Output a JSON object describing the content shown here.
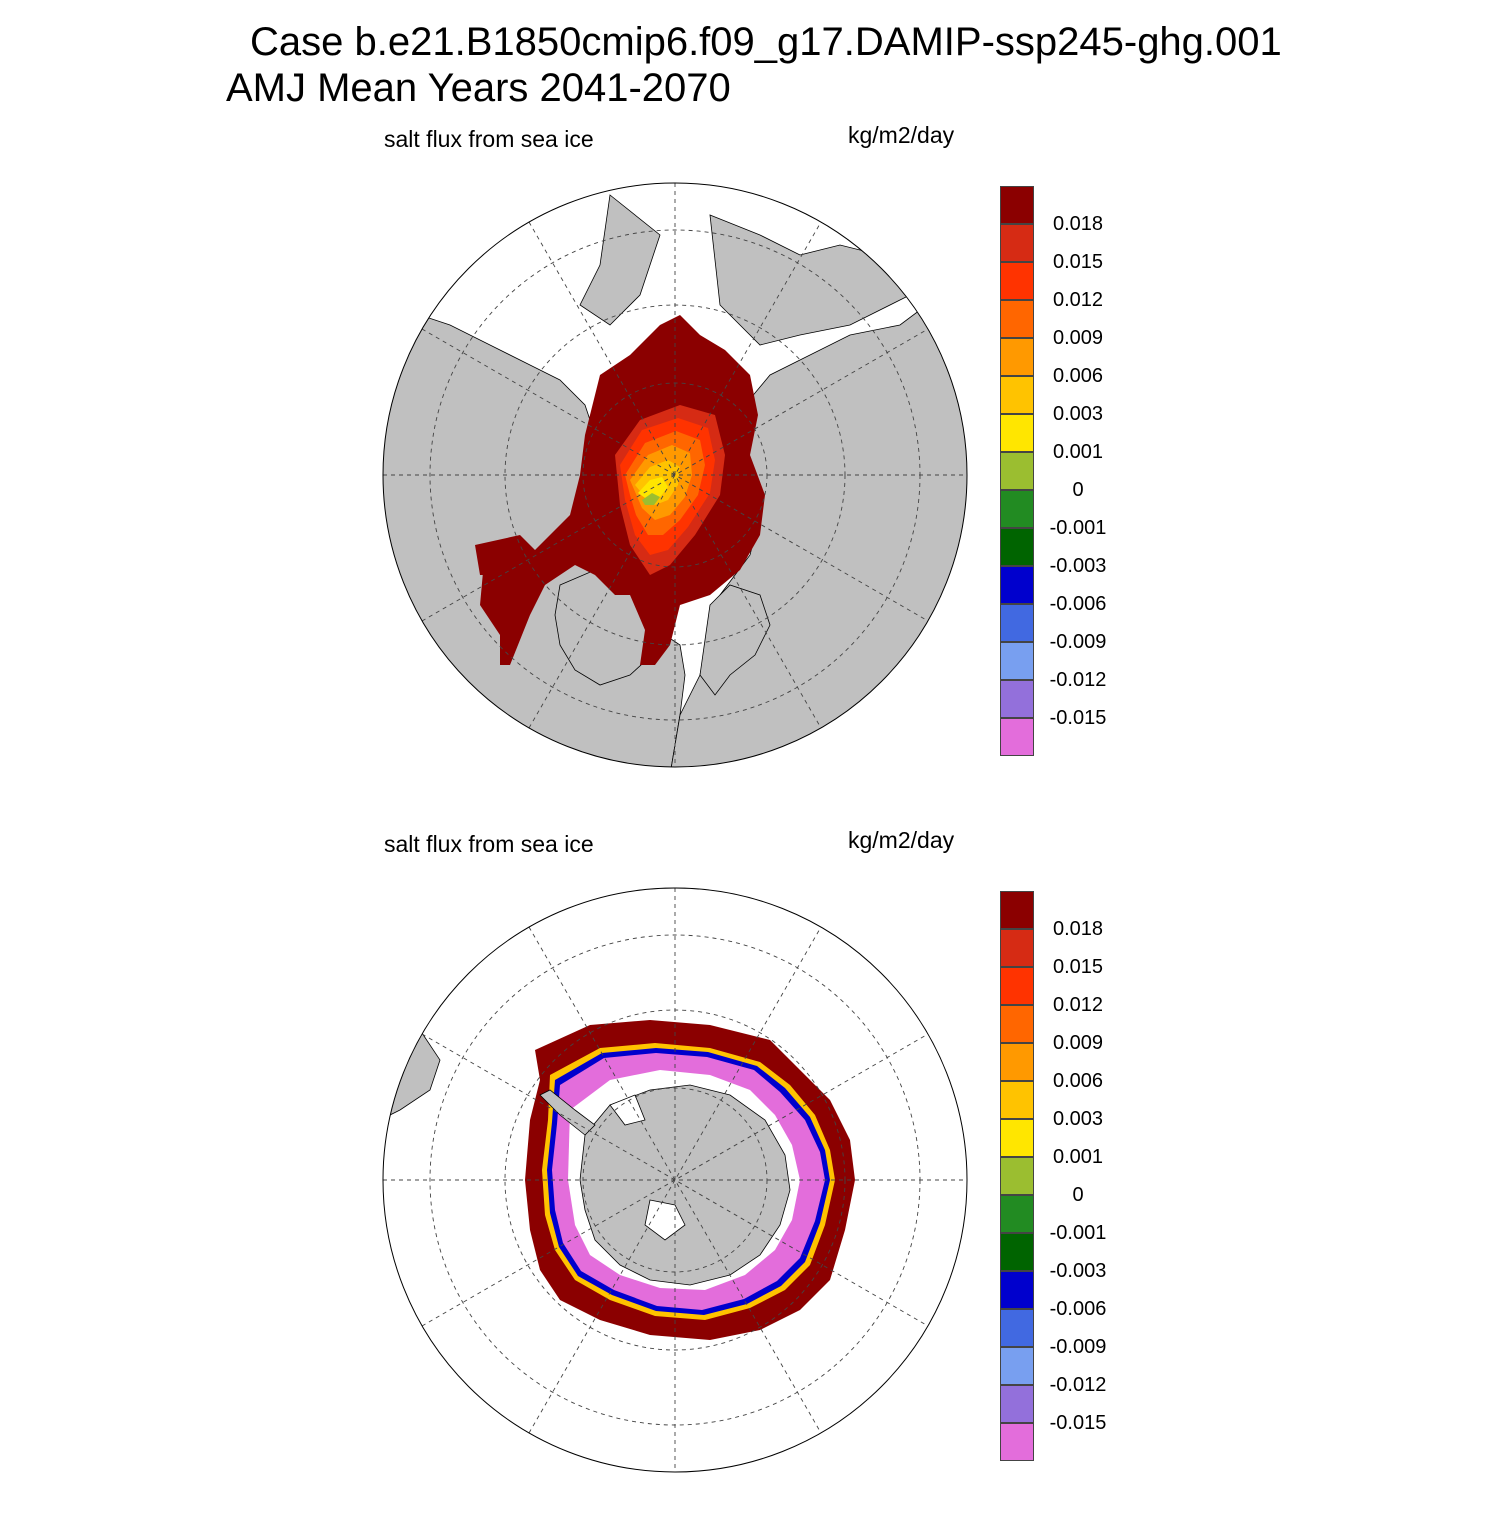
{
  "title": {
    "line1": "Case b.e21.B1850cmip6.f09_g17.DAMIP-ssp245-ghg.001",
    "line2": "AMJ Mean   Years 2041-2070"
  },
  "colors": {
    "land": "#c0c0c0",
    "ocean": "#ffffff",
    "coast": "#000000",
    "grid": "#444444"
  },
  "colorbar": {
    "colors": [
      "#8b0000",
      "#d62b14",
      "#ff3300",
      "#ff6600",
      "#ff9900",
      "#ffc300",
      "#ffe600",
      "#9bbe30",
      "#228b22",
      "#006400",
      "#0000cd",
      "#4169e1",
      "#789ff0",
      "#9370db",
      "#e36ddb"
    ],
    "labels": [
      "0.018",
      "0.015",
      "0.012",
      "0.009",
      "0.006",
      "0.003",
      "0.001",
      "0",
      "-0.001",
      "-0.003",
      "-0.006",
      "-0.009",
      "-0.012",
      "-0.015"
    ]
  },
  "panels": [
    {
      "id": "north",
      "variable_label": "salt flux from sea ice",
      "units_label": "kg/m2/day",
      "hemisphere": "Northern Hemisphere polar stereographic",
      "field_summary": "Positive salt flux over Arctic sea ice; strongest (>0.018) along ice margins and Hudson Bay/Baffin Bay, decreasing to 0.001-0.006 in central Arctic north of Greenland"
    },
    {
      "id": "south",
      "variable_label": "salt flux from sea ice",
      "units_label": "kg/m2/day",
      "hemisphere": "Southern Hemisphere polar stereographic",
      "field_summary": "Ring of strong positive salt flux (>0.018) along the Antarctic sea ice edge; negative values (<-0.015) in the Weddell and Ross Sea embayments near the coast"
    }
  ],
  "chart_data": [
    {
      "type": "heatmap",
      "title": "salt flux from sea ice",
      "units": "kg/m2/day",
      "region": "Arctic",
      "levels": [
        -0.015,
        -0.012,
        -0.009,
        -0.006,
        -0.003,
        -0.001,
        0,
        0.001,
        0.003,
        0.006,
        0.009,
        0.012,
        0.015,
        0.018
      ]
    },
    {
      "type": "heatmap",
      "title": "salt flux from sea ice",
      "units": "kg/m2/day",
      "region": "Antarctic",
      "levels": [
        -0.015,
        -0.012,
        -0.009,
        -0.006,
        -0.003,
        -0.001,
        0,
        0.001,
        0.003,
        0.006,
        0.009,
        0.012,
        0.015,
        0.018
      ]
    }
  ]
}
